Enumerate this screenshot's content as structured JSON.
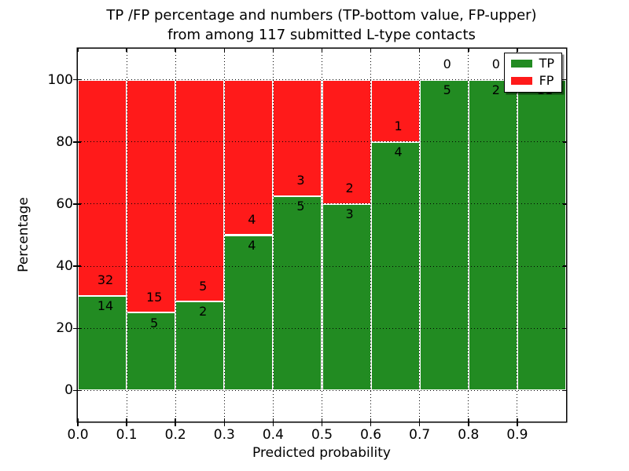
{
  "figure": {
    "title_line1": "TP /FP percentage and numbers (TP-bottom value, FP-upper)",
    "title_line2": "from among 117 submitted L-type contacts"
  },
  "axes": {
    "xlabel": "Predicted probability",
    "ylabel": "Percentage",
    "x_tick_labels": [
      "0.0",
      "0.1",
      "0.2",
      "0.3",
      "0.4",
      "0.5",
      "0.6",
      "0.7",
      "0.8",
      "0.9"
    ],
    "y_tick_labels": [
      "0",
      "20",
      "40",
      "60",
      "80",
      "100"
    ]
  },
  "legend": {
    "items": [
      {
        "label": "TP",
        "color": "#228B22"
      },
      {
        "label": "FP",
        "color": "#FF1A1A"
      }
    ]
  },
  "chart_data": {
    "type": "bar",
    "stacked": true,
    "normalized_to_percent": true,
    "title": "TP /FP percentage and numbers (TP-bottom value, FP-upper) from among 117 submitted L-type contacts",
    "xlabel": "Predicted probability",
    "ylabel": "Percentage",
    "xlim": [
      0.0,
      1.0
    ],
    "ylim": [
      -10,
      110
    ],
    "grid": "dotted",
    "legend_position": "upper right",
    "bin_width": 0.1,
    "bin_starts": [
      0.0,
      0.1,
      0.2,
      0.3,
      0.4,
      0.5,
      0.6,
      0.7,
      0.8,
      0.9
    ],
    "series": [
      {
        "name": "TP",
        "color": "#228B22",
        "counts": [
          14,
          5,
          2,
          4,
          5,
          3,
          4,
          5,
          2,
          11
        ]
      },
      {
        "name": "FP",
        "color": "#FF1A1A",
        "counts": [
          32,
          15,
          5,
          4,
          3,
          2,
          1,
          0,
          0,
          0
        ]
      }
    ],
    "tp_percent": [
      30.43,
      25.0,
      28.57,
      50.0,
      62.5,
      60.0,
      80.0,
      100.0,
      100.0,
      100.0
    ],
    "total_contacts": 117
  }
}
